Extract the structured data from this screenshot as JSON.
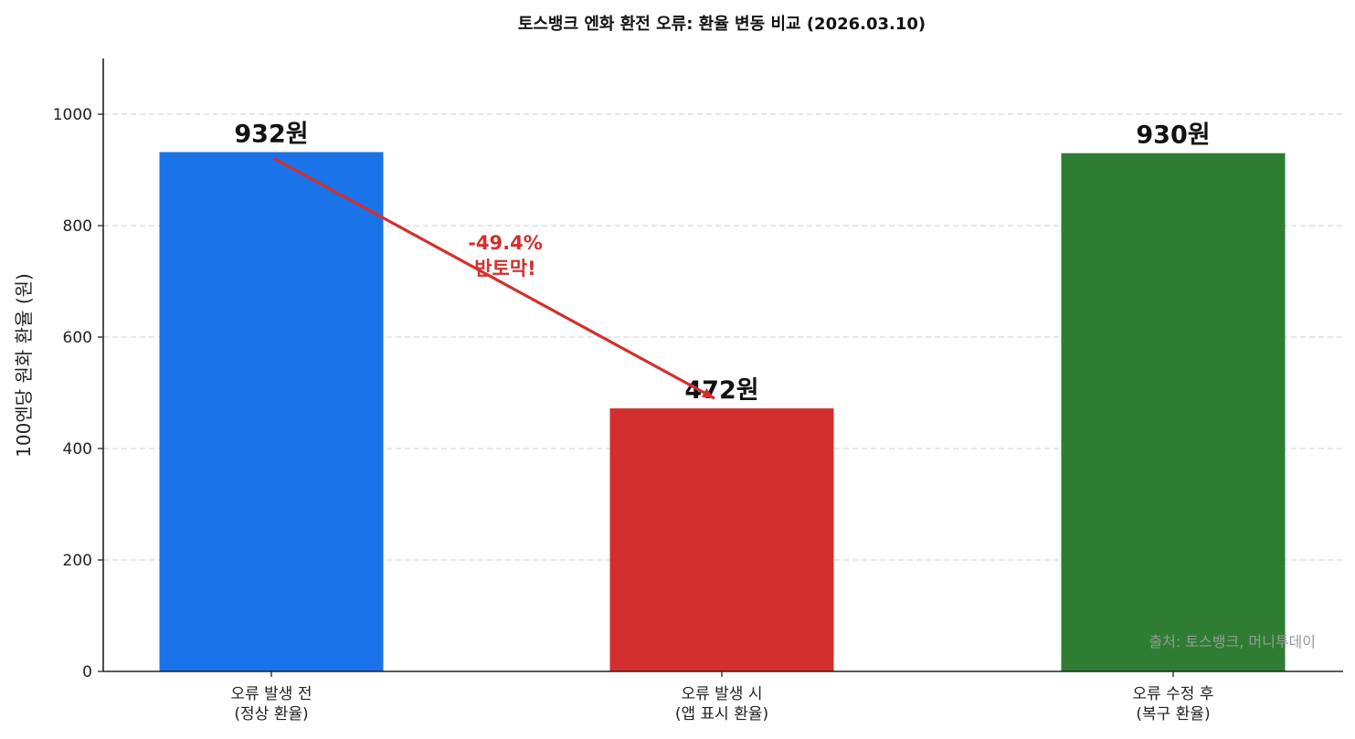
{
  "chart_data": {
    "type": "bar",
    "title": "토스뱅크 엔화 환전 오류: 환율 변동 비교 (2026.03.10)",
    "ylabel": "100엔당 원화 환율 (원)",
    "xlabel": "",
    "ylim": [
      0,
      1100
    ],
    "yticks": [
      0,
      200,
      400,
      600,
      800,
      1000
    ],
    "categories": [
      [
        "오류 발생 전",
        "(정상 환율)"
      ],
      [
        "오류 발생 시",
        "(앱 표시 환율)"
      ],
      [
        "오류 수정 후",
        "(복구 환율)"
      ]
    ],
    "values": [
      932,
      472,
      930
    ],
    "data_labels": [
      "932원",
      "472원",
      "930원"
    ],
    "colors": [
      "#1a73e8",
      "#d32f2f",
      "#2e7d32"
    ],
    "grid": true,
    "annotation": {
      "text_lines": [
        "-49.4%",
        "반토막!"
      ],
      "from_category": 0,
      "to_category": 1,
      "color": "#d32f2f"
    },
    "source_note": "출처: 토스뱅크, 머니투데이"
  }
}
